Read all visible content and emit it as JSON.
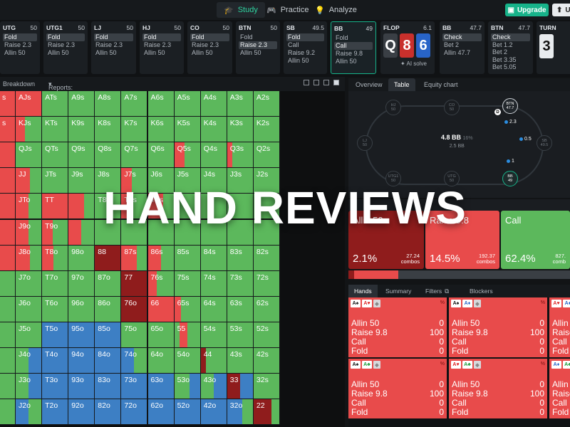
{
  "nav": {
    "tabs": [
      {
        "label": "Study",
        "icon": "graduation-cap-icon",
        "active": true
      },
      {
        "label": "Practice",
        "icon": "gamepad-icon",
        "active": false
      },
      {
        "label": "Analyze",
        "icon": "bulb-icon",
        "active": false
      }
    ],
    "upgrade_label": "Upgrade",
    "user_label": "U"
  },
  "positions": [
    {
      "name": "UTG",
      "stack": "50",
      "actions": [
        "Fold",
        "Raise 2.3",
        "Allin 50"
      ],
      "highlight": 0
    },
    {
      "name": "UTG1",
      "stack": "50",
      "actions": [
        "Fold",
        "Raise 2.3",
        "Allin 50"
      ],
      "highlight": 0
    },
    {
      "name": "LJ",
      "stack": "50",
      "actions": [
        "Fold",
        "Raise 2.3",
        "Allin 50"
      ],
      "highlight": 0
    },
    {
      "name": "HJ",
      "stack": "50",
      "actions": [
        "Fold",
        "Raise 2.3",
        "Allin 50"
      ],
      "highlight": 0
    },
    {
      "name": "CO",
      "stack": "50",
      "actions": [
        "Fold",
        "Raise 2.3",
        "Allin 50"
      ],
      "highlight": 0
    },
    {
      "name": "BTN",
      "stack": "50",
      "actions": [
        "Fold",
        "Raise 2.3",
        "Allin 50"
      ],
      "highlight": 1
    },
    {
      "name": "SB",
      "stack": "49.5",
      "actions": [
        "Fold",
        "Call",
        "Raise 9.2",
        "Allin 50"
      ],
      "highlight": 0
    },
    {
      "name": "BB",
      "stack": "49",
      "actions": [
        "Fold",
        "Call",
        "Raise 9.8",
        "Allin 50"
      ],
      "highlight": 1,
      "selected": true
    }
  ],
  "flop": {
    "name": "FLOP",
    "pot": "6.1",
    "cards": [
      {
        "rank": "Q",
        "color": "#3a3f45"
      },
      {
        "rank": "8",
        "color": "#c9302c"
      },
      {
        "rank": "6",
        "color": "#2864c8"
      }
    ],
    "ai_label": "AI solve"
  },
  "postflop": [
    {
      "name": "BB",
      "stack": "47.7",
      "actions": [
        "Check",
        "Bet 2",
        "Allin 47.7"
      ],
      "highlight": 0
    },
    {
      "name": "BTN",
      "stack": "47.7",
      "actions": [
        "Check",
        "Bet 1.2",
        "Bet 2",
        "Bet 3.35",
        "Bet 5.05"
      ],
      "highlight": 0
    }
  ],
  "turn": {
    "name": "TURN",
    "card": "3"
  },
  "subbar": {
    "breakdown": "Breakdown",
    "reports": "Reports: Flops"
  },
  "grid": {
    "ranks": [
      "A",
      "K",
      "Q",
      "J",
      "T",
      "9",
      "8",
      "7",
      "6",
      "5",
      "4",
      "3",
      "2"
    ],
    "labels": [
      [
        "s",
        "AJs",
        "ATs",
        "A9s",
        "A8s",
        "A7s",
        "A6s",
        "A5s",
        "A4s",
        "A3s",
        "A2s"
      ],
      [
        "s",
        "KJs",
        "KTs",
        "K9s",
        "K8s",
        "K7s",
        "K6s",
        "K5s",
        "K4s",
        "K3s",
        "K2s"
      ],
      [
        "",
        "QJs",
        "QTs",
        "Q9s",
        "Q8s",
        "Q7s",
        "Q6s",
        "Q5s",
        "Q4s",
        "Q3s",
        "Q2s"
      ],
      [
        "",
        "JJ",
        "JTs",
        "J9s",
        "J8s",
        "J7s",
        "J6s",
        "J5s",
        "J4s",
        "J3s",
        "J2s"
      ],
      [
        "",
        "JTo",
        "TT",
        "",
        "T8s",
        "T7s",
        "T6s",
        "",
        "",
        "",
        ""
      ],
      [
        "",
        "J9o",
        "T9o",
        "",
        "",
        "",
        "",
        "",
        "",
        "",
        ""
      ],
      [
        "",
        "J8o",
        "T8o",
        "98o",
        "88",
        "87s",
        "86s",
        "85s",
        "84s",
        "83s",
        "82s"
      ],
      [
        "",
        "J7o",
        "T7o",
        "97o",
        "87o",
        "77",
        "76s",
        "75s",
        "74s",
        "73s",
        "72s"
      ],
      [
        "",
        "J6o",
        "T6o",
        "96o",
        "86o",
        "76o",
        "66",
        "65s",
        "64s",
        "63s",
        "62s"
      ],
      [
        "",
        "J5o",
        "T5o",
        "95o",
        "85o",
        "75o",
        "65o",
        "55",
        "54s",
        "53s",
        "52s"
      ],
      [
        "",
        "J4o",
        "T4o",
        "94o",
        "84o",
        "74o",
        "64o",
        "54o",
        "44",
        "43s",
        "42s"
      ],
      [
        "",
        "J3o",
        "T3o",
        "93o",
        "83o",
        "73o",
        "63o",
        "53o",
        "43o",
        "33",
        "32s"
      ],
      [
        "",
        "J2o",
        "T2o",
        "92o",
        "82o",
        "72o",
        "62o",
        "52o",
        "42o",
        "32o",
        "22"
      ]
    ]
  },
  "right_tabs": [
    {
      "label": "Overview"
    },
    {
      "label": "Table",
      "active": true
    },
    {
      "label": "Equity chart"
    }
  ],
  "table": {
    "pot": "4.8 BB",
    "pot_pct": "16%",
    "sub_pot": "2.5 BB",
    "seats": [
      {
        "name": "HJ",
        "stack": "50"
      },
      {
        "name": "CO",
        "stack": "50"
      },
      {
        "name": "BTN",
        "stack": "47.7"
      },
      {
        "name": "LJ",
        "stack": "50"
      },
      {
        "name": "SB",
        "stack": "49.5"
      },
      {
        "name": "UTG1",
        "stack": "50"
      },
      {
        "name": "UTG",
        "stack": "50"
      },
      {
        "name": "BB",
        "stack": "49"
      }
    ],
    "chips": {
      "btn": "2.3",
      "sb": "0.5",
      "bb": "1"
    },
    "dealer": "D"
  },
  "summary": [
    {
      "name": "Allin 50",
      "pct": "2.1%",
      "combos": "27.24",
      "combos_label": "combos",
      "color": "#8f1c1c"
    },
    {
      "name": "Raise 9.8",
      "pct": "14.5%",
      "combos": "192.37",
      "combos_label": "combos",
      "color": "#e84b4b"
    },
    {
      "name": "Call",
      "pct": "62.4%",
      "combos": "827.",
      "combos_label": "comb",
      "color": "#5cb85c"
    }
  ],
  "hand_tabs": [
    {
      "label": "Hands",
      "active": true
    },
    {
      "label": "Summary"
    },
    {
      "label": "Filters"
    },
    {
      "label": "Blockers"
    }
  ],
  "hands": [
    {
      "cards": [
        {
          "r": "A",
          "s": "♠",
          "c": "#111"
        },
        {
          "r": "A",
          "s": "♥",
          "c": "#d22"
        }
      ],
      "rows": [
        [
          "Allin 50",
          "0"
        ],
        [
          "Raise 9.8",
          "100"
        ],
        [
          "Call",
          "0"
        ],
        [
          "Fold",
          "0"
        ]
      ]
    },
    {
      "cards": [
        {
          "r": "A",
          "s": "♠",
          "c": "#111"
        },
        {
          "r": "A",
          "s": "♦",
          "c": "#2864c8"
        }
      ],
      "rows": [
        [
          "Allin 50",
          "0"
        ],
        [
          "Raise 9.8",
          "100"
        ],
        [
          "Call",
          "0"
        ],
        [
          "Fold",
          "0"
        ]
      ]
    },
    {
      "cards": [
        {
          "r": "A",
          "s": "♥",
          "c": "#d22"
        },
        {
          "r": "A",
          "s": "♦",
          "c": "#2864c8"
        }
      ],
      "rows": [
        [
          "Allin 50",
          ""
        ],
        [
          "Raise 9.8",
          ""
        ],
        [
          "Call",
          ""
        ],
        [
          "Fold",
          ""
        ]
      ]
    },
    {
      "cards": [
        {
          "r": "A",
          "s": "♠",
          "c": "#111"
        },
        {
          "r": "A",
          "s": "♣",
          "c": "#1a9a3a"
        }
      ],
      "rows": [
        [
          "Allin 50",
          "0"
        ],
        [
          "Raise 9.8",
          "100"
        ],
        [
          "Call",
          "0"
        ],
        [
          "Fold",
          "0"
        ]
      ]
    },
    {
      "cards": [
        {
          "r": "A",
          "s": "♥",
          "c": "#d22"
        },
        {
          "r": "A",
          "s": "♣",
          "c": "#1a9a3a"
        }
      ],
      "rows": [
        [
          "Allin 50",
          "0"
        ],
        [
          "Raise 9.8",
          "100"
        ],
        [
          "Call",
          "0"
        ],
        [
          "Fold",
          "0"
        ]
      ]
    },
    {
      "cards": [
        {
          "r": "A",
          "s": "♦",
          "c": "#2864c8"
        },
        {
          "r": "A",
          "s": "♣",
          "c": "#1a9a3a"
        }
      ],
      "rows": [
        [
          "Allin 50",
          ""
        ],
        [
          "Raise 9.8",
          ""
        ],
        [
          "Call",
          ""
        ],
        [
          "Fold",
          ""
        ]
      ]
    }
  ],
  "colors": {
    "allin": "#8f1c1c",
    "raise": "#e84b4b",
    "call": "#5cb85c",
    "fold": "#3d7fc4"
  },
  "banner": "HAND REVIEWS"
}
